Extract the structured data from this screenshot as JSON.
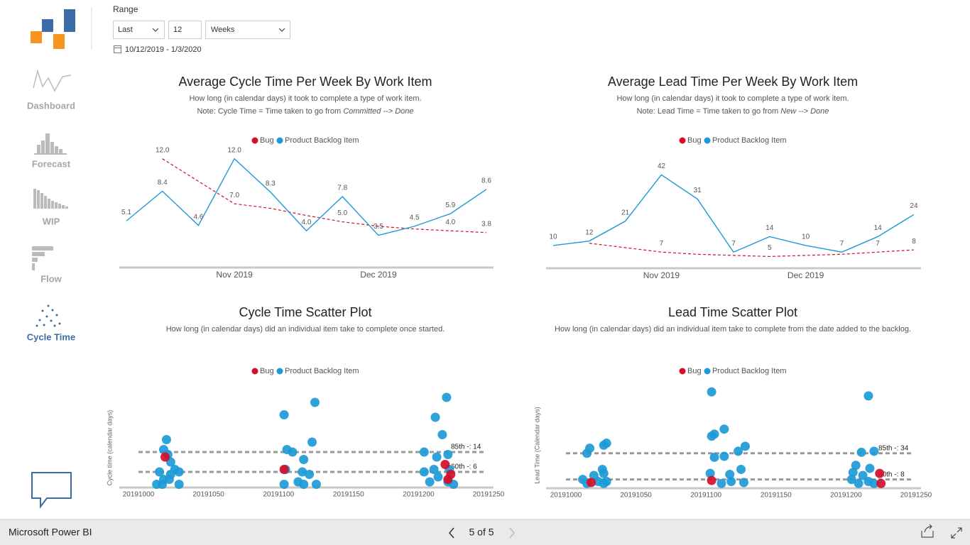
{
  "nav": {
    "items": [
      "Dashboard",
      "Forecast",
      "WIP",
      "Flow",
      "Cycle Time"
    ],
    "active": 4
  },
  "filter": {
    "label": "Range",
    "mode": "Last",
    "count": "12",
    "unit": "Weeks",
    "date_range": "10/12/2019 - 1/3/2020"
  },
  "chart_data": [
    {
      "type": "line",
      "title": "Average Cycle Time Per Week By Work Item",
      "subtitle": "How long (in calendar days) it took to complete a type of work item.",
      "note": "Note: Cycle Time = Time taken to go from ",
      "note_emphasis": "Committed --> Done",
      "categories": [
        null,
        null,
        null,
        "Nov 2019",
        null,
        null,
        null,
        "Dec 2019",
        null,
        null,
        null
      ],
      "ylim": [
        0,
        13
      ],
      "series": [
        {
          "name": "Bug",
          "color": "#d40f2a",
          "dashed": true,
          "values": [
            null,
            12,
            9.5,
            7,
            6.5,
            5.7,
            5,
            4.5,
            4.2,
            4,
            3.8
          ],
          "value_labels": [
            null,
            "12.0",
            null,
            "7.0",
            null,
            null,
            "5.0",
            null,
            null,
            "4.0",
            "3.8"
          ]
        },
        {
          "name": "Product Backlog Item",
          "color": "#1c9ad6",
          "values": [
            5.1,
            8.4,
            4.6,
            12,
            8.3,
            4,
            7.8,
            3.5,
            4.5,
            5.9,
            8.6
          ],
          "value_labels": [
            "5.1",
            "8.4",
            "4.6",
            "12.0",
            "8.3",
            "4.0",
            "7.8",
            "3.5",
            "4.5",
            "5.9",
            "8.6"
          ]
        }
      ]
    },
    {
      "type": "line",
      "title": "Average Lead Time Per Week By Work Item",
      "subtitle": "How long (in calendar days) it took to complete a type of work item.",
      "note": "Note: Lead Time = Time taken to go from ",
      "note_emphasis": "New --> Done",
      "categories": [
        null,
        null,
        null,
        "Nov 2019",
        null,
        null,
        null,
        "Dec 2019",
        null,
        null,
        null
      ],
      "ylim": [
        0,
        45
      ],
      "series": [
        {
          "name": "Bug",
          "color": "#d40f2a",
          "dashed": true,
          "values": [
            null,
            11,
            9,
            7,
            6,
            5.5,
            5,
            5.5,
            6,
            7,
            8
          ],
          "value_labels": [
            null,
            null,
            null,
            "7",
            null,
            null,
            "5",
            null,
            null,
            "7",
            "8"
          ]
        },
        {
          "name": "Product Backlog Item",
          "color": "#1c9ad6",
          "values": [
            10,
            12,
            21,
            42,
            31,
            7,
            14,
            10,
            7,
            14,
            24
          ],
          "value_labels": [
            "10",
            "12",
            "21",
            "42",
            "31",
            "7",
            "14",
            "10",
            "7",
            "14",
            "24"
          ]
        }
      ]
    },
    {
      "type": "scatter",
      "title": "Cycle Time Scatter Plot",
      "subtitle": "How long (in calendar days) did an individual item take to complete once started.",
      "y_label": "Cycle time (calendar days)",
      "xlim": [
        20191000,
        20191250
      ],
      "xticks": [
        20191000,
        20191050,
        20191100,
        20191150,
        20191200,
        20191250
      ],
      "ylim": [
        0,
        40
      ],
      "ref_lines": [
        {
          "value": 14,
          "label": "85th -: 14"
        },
        {
          "value": 6,
          "label": "60th -: 6"
        }
      ],
      "series": [
        {
          "name": "Bug",
          "color": "#d40f2a",
          "x": [
            20191019,
            20191104,
            20191219,
            20191223,
            20191221
          ],
          "values": [
            12,
            7,
            9,
            5,
            3
          ]
        },
        {
          "name": "Product Backlog Item",
          "color": "#1c9ad6",
          "x": [
            20191020,
            20191018,
            20191021,
            20191023,
            20191026,
            20191015,
            20191029,
            20191023,
            20191018,
            20191017,
            20191029,
            20191013,
            20191022,
            20191104,
            20191126,
            20191124,
            20191110,
            20191106,
            20191105,
            20191118,
            20191117,
            20191122,
            20191104,
            20191114,
            20191127,
            20191118,
            20191220,
            20191212,
            20191217,
            20191204,
            20191221,
            20191213,
            20191204,
            20191222,
            20191211,
            20191214,
            20191208,
            20191225,
            20191221
          ],
          "values": [
            19,
            15,
            13,
            10,
            7,
            6,
            6,
            5,
            3,
            1,
            1,
            1,
            3,
            29,
            34,
            18,
            14,
            15,
            7,
            11,
            6,
            5,
            1,
            2,
            1,
            1,
            36,
            28,
            21,
            14,
            13,
            12,
            6,
            7,
            7,
            4,
            2,
            1,
            2
          ]
        }
      ]
    },
    {
      "type": "scatter",
      "title": "Lead Time Scatter Plot",
      "subtitle": "How long (in calendar days) did an individual item take to complete from the date added to the backlog.",
      "y_label": "Lead Time (Calendar days)",
      "xlim": [
        20191000,
        20191250
      ],
      "xticks": [
        20191000,
        20191050,
        20191100,
        20191150,
        20191200,
        20191250
      ],
      "ylim": [
        0,
        105
      ],
      "ref_lines": [
        {
          "value": 34,
          "label": "85th -: 34"
        },
        {
          "value": 8,
          "label": "60th -: 8"
        }
      ],
      "series": [
        {
          "name": "Bug",
          "color": "#d40f2a",
          "x": [
            20191018,
            20191104,
            20191224,
            20191225
          ],
          "values": [
            5,
            7,
            14,
            4
          ]
        },
        {
          "name": "Product Backlog Item",
          "color": "#1c9ad6",
          "x": [
            20191029,
            20191027,
            20191017,
            20191015,
            20191026,
            20191027,
            20191020,
            20191012,
            20191023,
            20191029,
            20191015,
            20191027,
            20191104,
            20191113,
            20191106,
            20191104,
            20191128,
            20191123,
            20191106,
            20191113,
            20191125,
            20191103,
            20191117,
            20191127,
            20191118,
            20191111,
            20191216,
            20191220,
            20191211,
            20191207,
            20191217,
            20191205,
            20191212,
            20191204,
            20191220,
            20191209,
            20191216
          ],
          "values": [
            44,
            42,
            39,
            34,
            18,
            14,
            12,
            8,
            6,
            6,
            4,
            4,
            95,
            58,
            53,
            51,
            41,
            36,
            30,
            31,
            18,
            14,
            13,
            5,
            6,
            4,
            91,
            36,
            35,
            22,
            19,
            15,
            12,
            8,
            4,
            4,
            6
          ]
        }
      ]
    }
  ],
  "footer": {
    "app": "Microsoft Power BI",
    "page": "5 of 5"
  }
}
